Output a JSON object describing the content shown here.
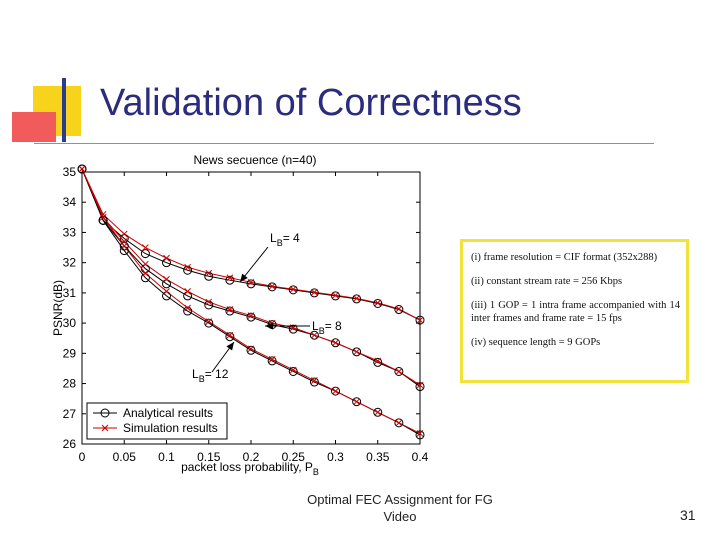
{
  "slide": {
    "title": "Validation of Correctness",
    "footer_line1": "Optimal FEC Assignment for FG",
    "footer_line2": "Video",
    "page_number": "31",
    "accent_colors": {
      "title": "#2c2c7e",
      "yellow": "#f7d31c",
      "red": "#f25b5b",
      "blue": "#2a3a8c"
    }
  },
  "notes": [
    "(i) frame resolution = CIF format (352x288)",
    "(ii) constant stream rate = 256 Kbps",
    "(iii) 1 GOP = 1 intra frame accompanied with 14 inter frames and frame rate = 15 fps",
    "(iv) sequence length = 9 GOPs"
  ],
  "chart_data": {
    "type": "line",
    "title": "News secuence (n=40)",
    "xlabel": "packet loss probability, P",
    "xlabel_sub": "B",
    "ylabel": "PSNR(dB)",
    "xlim": [
      0,
      0.4
    ],
    "ylim": [
      26,
      35
    ],
    "x_ticks": [
      0,
      0.05,
      0.1,
      0.15,
      0.2,
      0.25,
      0.3,
      0.35,
      0.4
    ],
    "x_tick_labels": [
      "0",
      "0.05",
      "0.1",
      "0.15",
      "0.2",
      "0.25",
      "0.3",
      "0.35",
      "0.4"
    ],
    "y_ticks": [
      26,
      27,
      28,
      29,
      30,
      31,
      32,
      33,
      34,
      35
    ],
    "y_tick_labels": [
      "26",
      "27",
      "28",
      "29",
      "30",
      "31",
      "32",
      "33",
      "34",
      "35"
    ],
    "grid": false,
    "legend_position": "bottom-left",
    "legend": [
      {
        "label": "Analytical results",
        "marker": "circle",
        "color": "#000000"
      },
      {
        "label": "Simulation results",
        "marker": "x",
        "color": "#cc0000"
      }
    ],
    "annotations": [
      {
        "label": "L",
        "sub": "B",
        "value": "= 4"
      },
      {
        "label": "L",
        "sub": "B",
        "value": "= 8"
      },
      {
        "label": "L",
        "sub": "B",
        "value": "= 12"
      }
    ],
    "series": [
      {
        "group": "LB = 4",
        "analytical": {
          "x": [
            0,
            0.025,
            0.05,
            0.075,
            0.1,
            0.125,
            0.15,
            0.175,
            0.2,
            0.225,
            0.25,
            0.275,
            0.3,
            0.325,
            0.35,
            0.375,
            0.4
          ],
          "y": [
            35.1,
            33.4,
            32.8,
            32.3,
            32.0,
            31.75,
            31.55,
            31.42,
            31.3,
            31.2,
            31.1,
            31.0,
            30.9,
            30.8,
            30.65,
            30.45,
            30.1
          ]
        },
        "simulation": {
          "x": [
            0,
            0.025,
            0.05,
            0.075,
            0.1,
            0.125,
            0.15,
            0.175,
            0.2,
            0.225,
            0.25,
            0.275,
            0.3,
            0.325,
            0.35,
            0.375,
            0.4
          ],
          "y": [
            35.1,
            33.6,
            32.95,
            32.5,
            32.15,
            31.85,
            31.65,
            31.5,
            31.35,
            31.22,
            31.12,
            31.02,
            30.92,
            30.82,
            30.67,
            30.47,
            30.1
          ]
        }
      },
      {
        "group": "LB = 8",
        "analytical": {
          "x": [
            0,
            0.025,
            0.05,
            0.075,
            0.1,
            0.125,
            0.15,
            0.175,
            0.2,
            0.225,
            0.25,
            0.275,
            0.3,
            0.325,
            0.35,
            0.375,
            0.4
          ],
          "y": [
            35.1,
            33.4,
            32.55,
            31.8,
            31.3,
            30.9,
            30.6,
            30.4,
            30.2,
            29.95,
            29.8,
            29.6,
            29.35,
            29.05,
            28.7,
            28.4,
            27.9
          ]
        },
        "simulation": {
          "x": [
            0,
            0.025,
            0.05,
            0.075,
            0.1,
            0.125,
            0.15,
            0.175,
            0.2,
            0.225,
            0.25,
            0.275,
            0.3,
            0.325,
            0.35,
            0.375,
            0.4
          ],
          "y": [
            35.1,
            33.5,
            32.7,
            31.95,
            31.45,
            31.05,
            30.7,
            30.45,
            30.25,
            30.0,
            29.85,
            29.6,
            29.35,
            29.05,
            28.75,
            28.4,
            27.95
          ]
        }
      },
      {
        "group": "LB = 12",
        "analytical": {
          "x": [
            0,
            0.025,
            0.05,
            0.075,
            0.1,
            0.125,
            0.15,
            0.175,
            0.2,
            0.225,
            0.25,
            0.275,
            0.3,
            0.325,
            0.35,
            0.375,
            0.4
          ],
          "y": [
            35.1,
            33.4,
            32.4,
            31.5,
            30.9,
            30.4,
            30.0,
            29.55,
            29.1,
            28.75,
            28.4,
            28.05,
            27.75,
            27.4,
            27.05,
            26.7,
            26.3
          ]
        },
        "simulation": {
          "x": [
            0,
            0.025,
            0.05,
            0.075,
            0.1,
            0.125,
            0.15,
            0.175,
            0.2,
            0.225,
            0.25,
            0.275,
            0.3,
            0.325,
            0.35,
            0.375,
            0.4
          ],
          "y": [
            35.1,
            33.5,
            32.55,
            31.65,
            31.05,
            30.5,
            30.05,
            29.6,
            29.15,
            28.8,
            28.45,
            28.1,
            27.75,
            27.4,
            27.05,
            26.7,
            26.35
          ]
        }
      }
    ]
  }
}
